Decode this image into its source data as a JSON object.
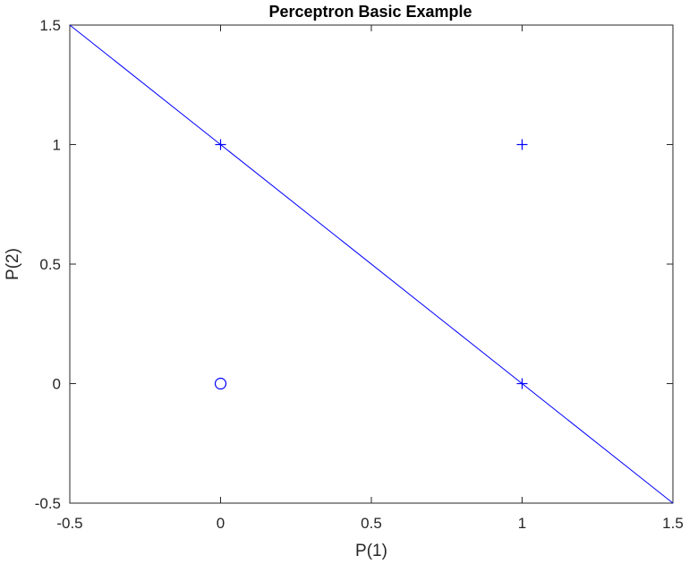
{
  "figure": {
    "title": "Perceptron Basic Example",
    "xlabel": "P(1)",
    "ylabel": "P(2)"
  },
  "chart_data": {
    "type": "scatter",
    "title": "Perceptron Basic Example",
    "xlabel": "P(1)",
    "ylabel": "P(2)",
    "xlim": [
      -0.5,
      1.5
    ],
    "ylim": [
      -0.5,
      1.5
    ],
    "xticks": [
      -0.5,
      0,
      0.5,
      1,
      1.5
    ],
    "yticks": [
      -0.5,
      0,
      0.5,
      1,
      1.5
    ],
    "xtick_labels": [
      "-0.5",
      "0",
      "0.5",
      "1",
      "1.5"
    ],
    "ytick_labels": [
      "-0.5",
      "0",
      "0.5",
      "1",
      "1.5"
    ],
    "grid": false,
    "color": "#0000ff",
    "points": [
      {
        "x": 0,
        "y": 0,
        "marker": "o"
      },
      {
        "x": 0,
        "y": 1,
        "marker": "+"
      },
      {
        "x": 1,
        "y": 0,
        "marker": "+"
      },
      {
        "x": 1,
        "y": 1,
        "marker": "+"
      }
    ],
    "decision_boundary": {
      "x": [
        -0.5,
        1.5
      ],
      "y": [
        1.5,
        -0.5
      ]
    }
  }
}
